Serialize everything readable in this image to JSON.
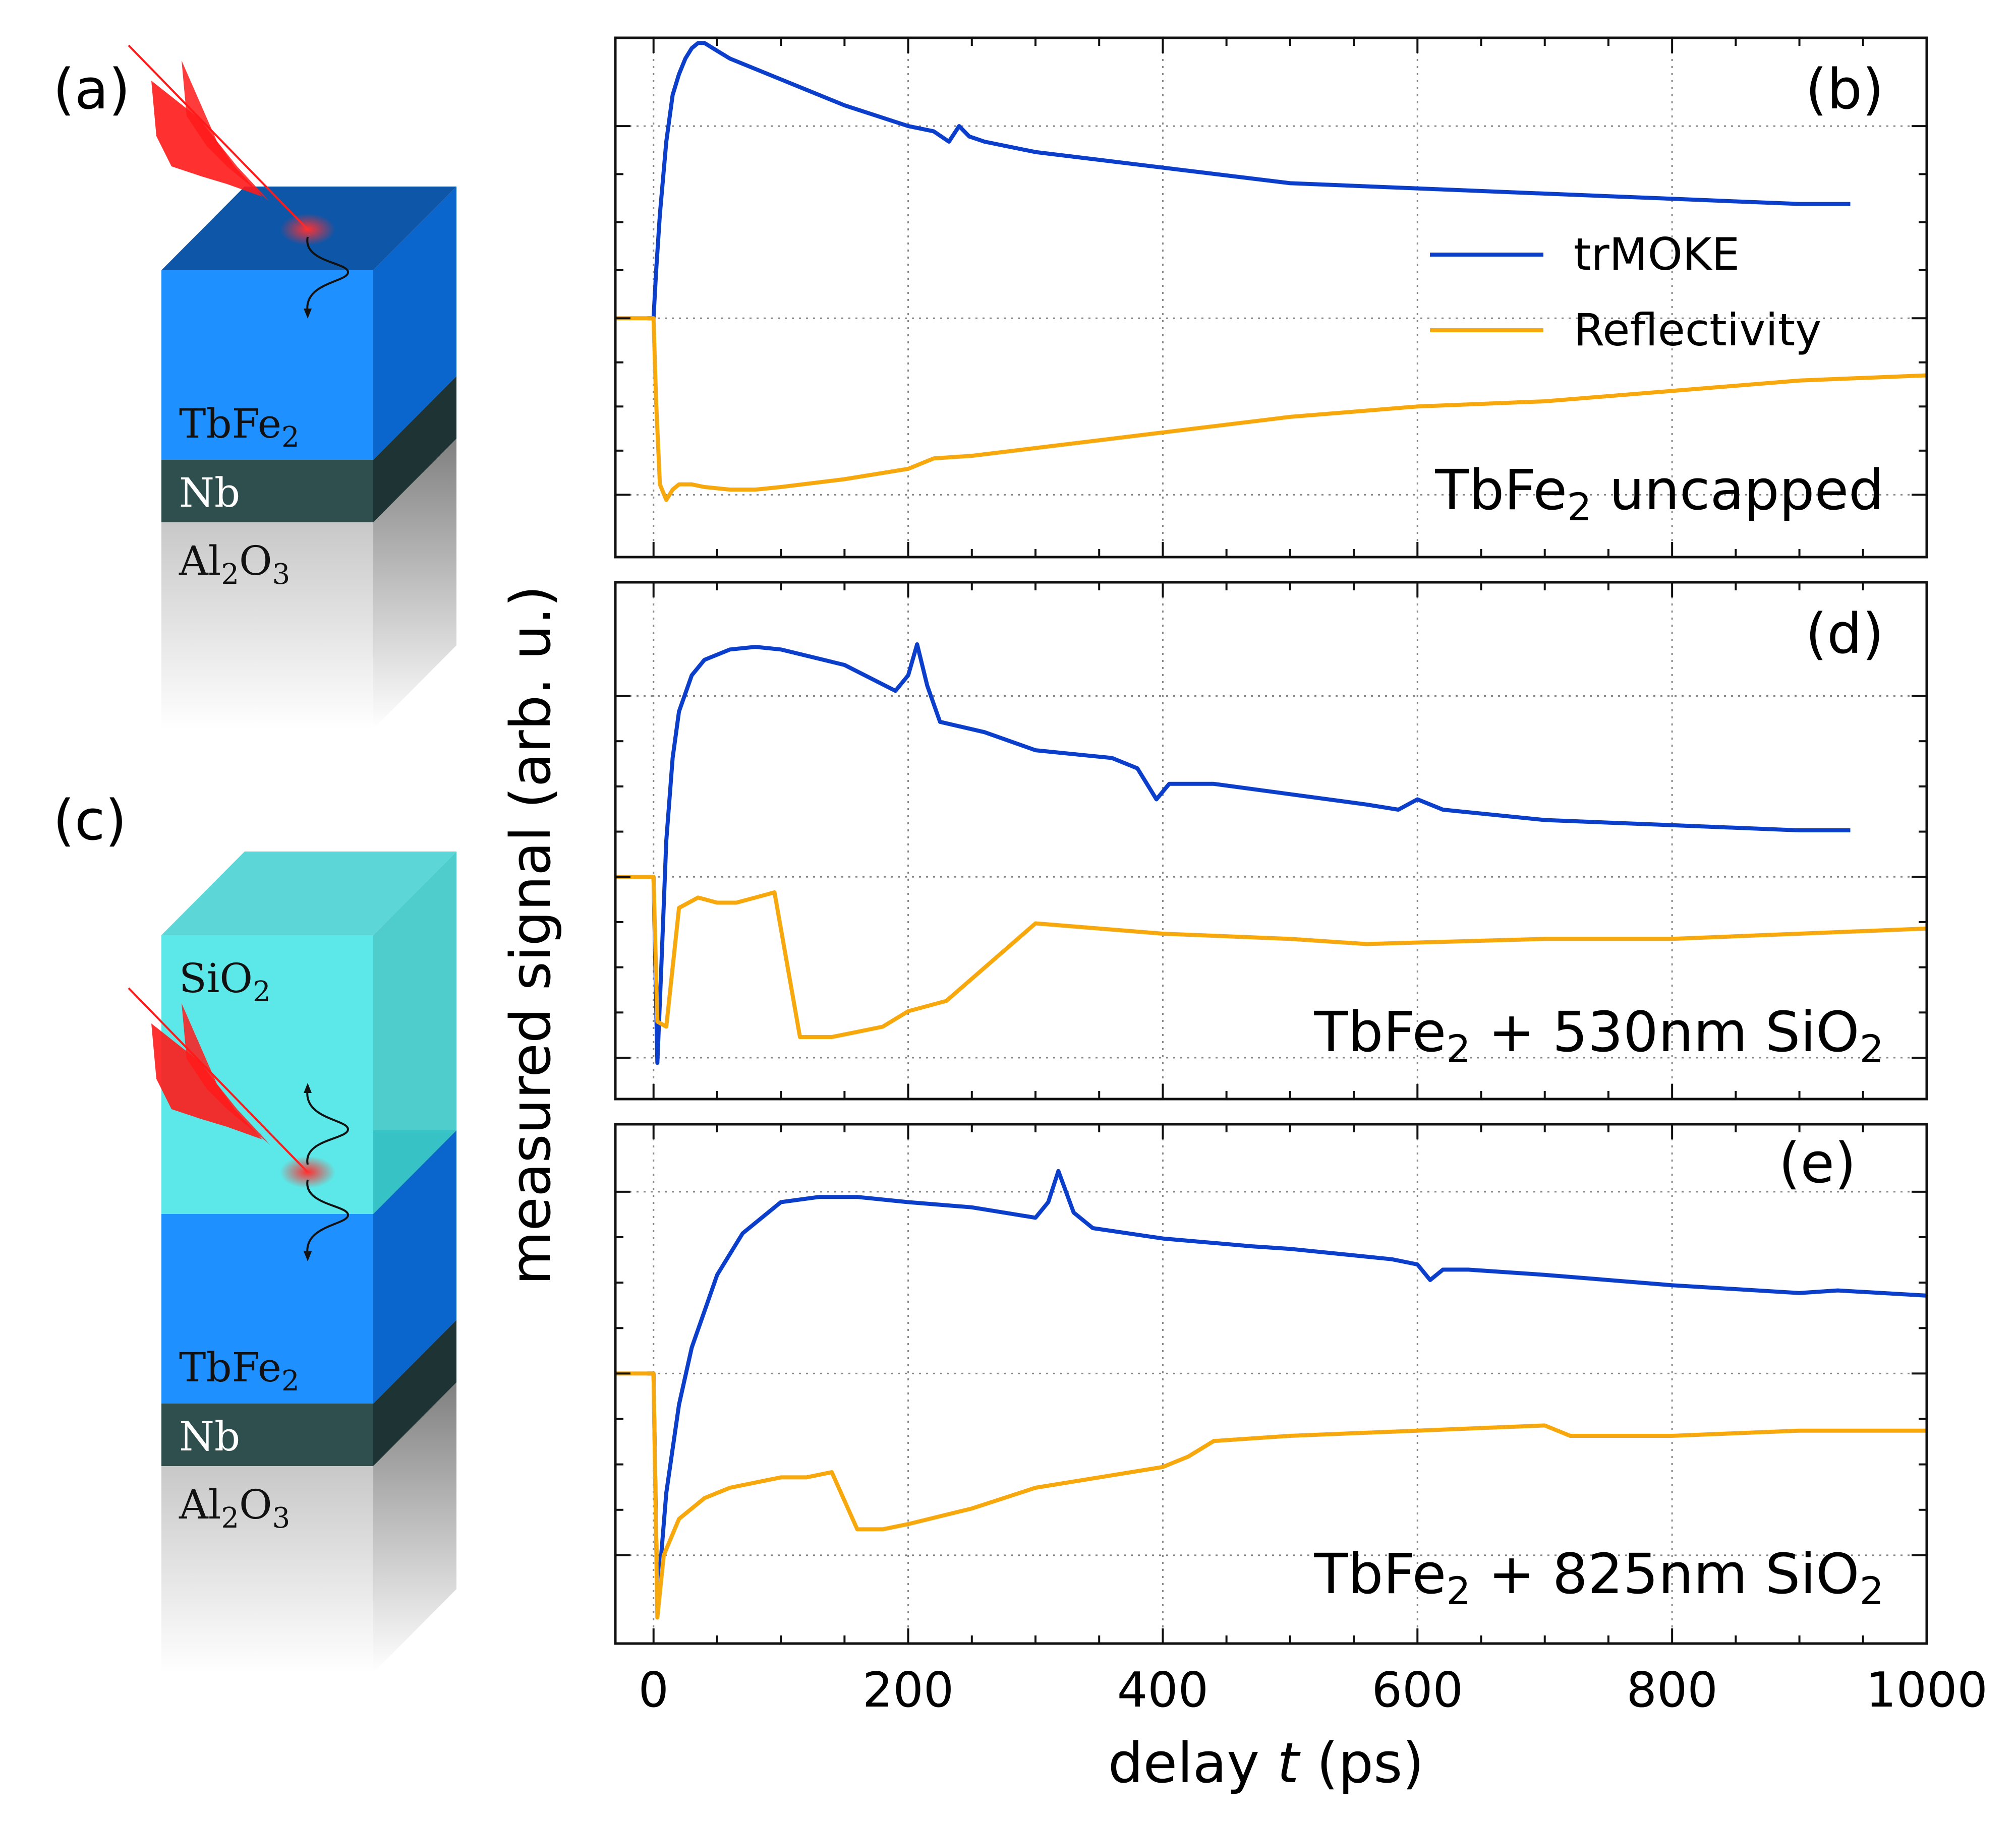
{
  "figure": {
    "left_panels": {
      "a": {
        "label": "(a)",
        "layers": [
          {
            "base": "TbFe",
            "sub": "2"
          },
          {
            "base": "Nb",
            "sub": ""
          },
          {
            "parts": [
              "Al",
              "2",
              "O",
              "3"
            ]
          }
        ]
      },
      "c": {
        "label": "(c)",
        "layers": [
          {
            "base": "SiO",
            "sub": "2"
          },
          {
            "base": "TbFe",
            "sub": "2"
          },
          {
            "base": "Nb",
            "sub": ""
          },
          {
            "parts": [
              "Al",
              "2",
              "O",
              "3"
            ]
          }
        ]
      }
    },
    "ylabel": "measured signal (arb. u.)",
    "xlabel_pre": "delay ",
    "xlabel_var": "t",
    "xlabel_post": " (ps)",
    "legend": {
      "trmoke": "trMOKE",
      "reflectivity": "Reflectivity"
    },
    "colors": {
      "trmoke": "#0b3fcb",
      "reflectivity": "#f7a80d",
      "tbfe_front": "#1e90ff",
      "tbfe_top": "#0d56a8",
      "tbfe_side": "#0a65cc",
      "nb": "#2f4f4f",
      "sio2": "#5ce8e8",
      "laser": "#ff1a1a"
    }
  },
  "chart_data": [
    {
      "type": "line",
      "panel_label": "(b)",
      "annotation": {
        "base": "TbFe",
        "sub": "2",
        "rest": " uncapped"
      },
      "xlim": [
        -30,
        1000
      ],
      "xticks": [
        0,
        200,
        400,
        600,
        800,
        1000
      ],
      "xtick_labels": [
        "0",
        "200",
        "400",
        "600",
        "800",
        "1000"
      ],
      "ylim": [
        0,
        1
      ],
      "series": [
        {
          "name": "trMOKE",
          "x": [
            -5,
            0,
            2,
            5,
            10,
            15,
            20,
            25,
            30,
            35,
            40,
            50,
            60,
            80,
            100,
            120,
            150,
            200,
            220,
            232,
            240,
            248,
            260,
            300,
            400,
            500,
            600,
            700,
            800,
            900,
            940
          ],
          "y": [
            0.46,
            0.46,
            0.55,
            0.66,
            0.8,
            0.89,
            0.93,
            0.96,
            0.98,
            0.99,
            0.99,
            0.975,
            0.96,
            0.94,
            0.92,
            0.9,
            0.87,
            0.83,
            0.82,
            0.8,
            0.83,
            0.81,
            0.8,
            0.78,
            0.75,
            0.72,
            0.71,
            0.7,
            0.69,
            0.68,
            0.68
          ]
        },
        {
          "name": "Reflectivity",
          "x": [
            -30,
            0,
            2,
            5,
            10,
            15,
            20,
            30,
            40,
            60,
            80,
            100,
            150,
            200,
            220,
            250,
            300,
            400,
            500,
            600,
            700,
            800,
            900,
            1000
          ],
          "y": [
            0.46,
            0.46,
            0.3,
            0.14,
            0.11,
            0.13,
            0.14,
            0.14,
            0.135,
            0.13,
            0.13,
            0.135,
            0.15,
            0.17,
            0.19,
            0.195,
            0.21,
            0.24,
            0.27,
            0.29,
            0.3,
            0.32,
            0.34,
            0.35
          ]
        }
      ]
    },
    {
      "type": "line",
      "panel_label": "(d)",
      "annotation": {
        "base": "TbFe",
        "sub": "2",
        "rest": " + 530nm SiO",
        "sub2": "2"
      },
      "xlim": [
        -30,
        1000
      ],
      "xticks": [
        0,
        200,
        400,
        600,
        800,
        1000
      ],
      "xtick_labels": [
        "0",
        "200",
        "400",
        "600",
        "800",
        "1000"
      ],
      "ylim": [
        0,
        1
      ],
      "series": [
        {
          "name": "trMOKE",
          "x": [
            -5,
            0,
            3,
            6,
            10,
            15,
            20,
            30,
            40,
            60,
            80,
            100,
            150,
            190,
            200,
            207,
            215,
            225,
            260,
            300,
            360,
            380,
            395,
            405,
            440,
            500,
            560,
            585,
            600,
            620,
            700,
            800,
            900,
            940
          ],
          "y": [
            0.43,
            0.43,
            0.07,
            0.25,
            0.5,
            0.66,
            0.75,
            0.82,
            0.85,
            0.87,
            0.875,
            0.87,
            0.84,
            0.79,
            0.82,
            0.88,
            0.8,
            0.73,
            0.71,
            0.675,
            0.66,
            0.64,
            0.58,
            0.61,
            0.61,
            0.59,
            0.57,
            0.56,
            0.58,
            0.56,
            0.54,
            0.53,
            0.52,
            0.52
          ]
        },
        {
          "name": "Reflectivity",
          "x": [
            -30,
            0,
            3,
            10,
            20,
            35,
            50,
            65,
            80,
            95,
            115,
            130,
            140,
            160,
            180,
            200,
            230,
            300,
            400,
            500,
            560,
            700,
            800,
            900,
            1000
          ],
          "y": [
            0.43,
            0.43,
            0.15,
            0.14,
            0.37,
            0.39,
            0.38,
            0.38,
            0.39,
            0.4,
            0.12,
            0.12,
            0.12,
            0.13,
            0.14,
            0.17,
            0.19,
            0.34,
            0.32,
            0.31,
            0.3,
            0.31,
            0.31,
            0.32,
            0.33
          ]
        }
      ]
    },
    {
      "type": "line",
      "panel_label": "(e)",
      "annotation": {
        "base": "TbFe",
        "sub": "2",
        "rest": " + 825nm SiO",
        "sub2": "2"
      },
      "xlim": [
        -30,
        1000
      ],
      "xticks": [
        0,
        200,
        400,
        600,
        800,
        1000
      ],
      "xtick_labels": [
        "0",
        "200",
        "400",
        "600",
        "800",
        "1000"
      ],
      "ylim": [
        0,
        1
      ],
      "series": [
        {
          "name": "trMOKE",
          "x": [
            -5,
            0,
            3,
            6,
            10,
            20,
            30,
            50,
            70,
            100,
            130,
            160,
            200,
            250,
            300,
            310,
            318,
            330,
            345,
            400,
            470,
            500,
            580,
            600,
            610,
            620,
            640,
            700,
            800,
            900,
            930,
            1000
          ],
          "y": [
            0.52,
            0.52,
            0.07,
            0.17,
            0.29,
            0.46,
            0.57,
            0.71,
            0.79,
            0.85,
            0.86,
            0.86,
            0.85,
            0.84,
            0.82,
            0.85,
            0.91,
            0.83,
            0.8,
            0.78,
            0.765,
            0.76,
            0.74,
            0.73,
            0.7,
            0.72,
            0.72,
            0.71,
            0.69,
            0.675,
            0.68,
            0.67
          ]
        },
        {
          "name": "Reflectivity",
          "x": [
            -30,
            0,
            3,
            8,
            20,
            40,
            60,
            80,
            100,
            120,
            140,
            160,
            180,
            200,
            250,
            300,
            350,
            400,
            420,
            440,
            500,
            600,
            700,
            720,
            800,
            900,
            1000
          ],
          "y": [
            0.52,
            0.52,
            0.05,
            0.17,
            0.24,
            0.28,
            0.3,
            0.31,
            0.32,
            0.32,
            0.33,
            0.22,
            0.22,
            0.23,
            0.26,
            0.3,
            0.32,
            0.34,
            0.36,
            0.39,
            0.4,
            0.41,
            0.42,
            0.4,
            0.4,
            0.41,
            0.41
          ]
        }
      ]
    }
  ]
}
